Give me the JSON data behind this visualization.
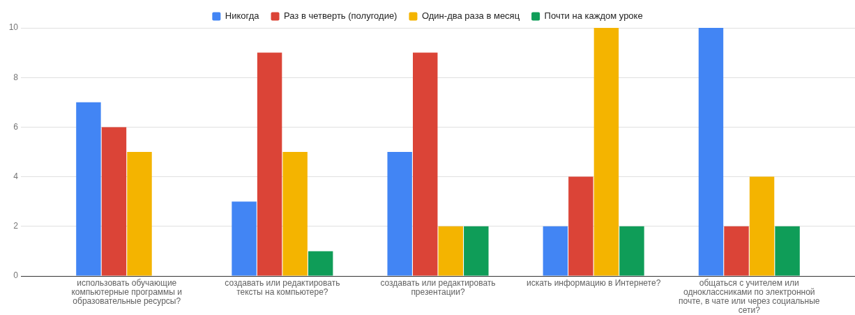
{
  "chart_data": {
    "type": "bar",
    "categories": [
      "использовать обучающие компьютерные программы и образовательные ресурсы?",
      "создавать или редактировать тексты на компьютере?",
      "создавать или редактировать презентации?",
      "искать информацию в Интернете?",
      "общаться с учителем или одноклассниками по электронной почте, в чате или через социальные сети?"
    ],
    "series": [
      {
        "name": "Никогда",
        "color": "#4285f4",
        "values": [
          7,
          3,
          5,
          2,
          10
        ]
      },
      {
        "name": "Раз в четверть (полугодие)",
        "color": "#db4437",
        "values": [
          6,
          9,
          9,
          4,
          2
        ]
      },
      {
        "name": "Один-два раза в месяц",
        "color": "#f4b400",
        "values": [
          5,
          5,
          2,
          10,
          4
        ]
      },
      {
        "name": "Почти на каждом уроке",
        "color": "#0f9d58",
        "values": [
          0,
          1,
          2,
          2,
          2
        ]
      }
    ],
    "ylim": [
      0,
      10
    ],
    "yticks": [
      0,
      2,
      4,
      6,
      8,
      10
    ],
    "grid": "y",
    "legend": "top"
  }
}
